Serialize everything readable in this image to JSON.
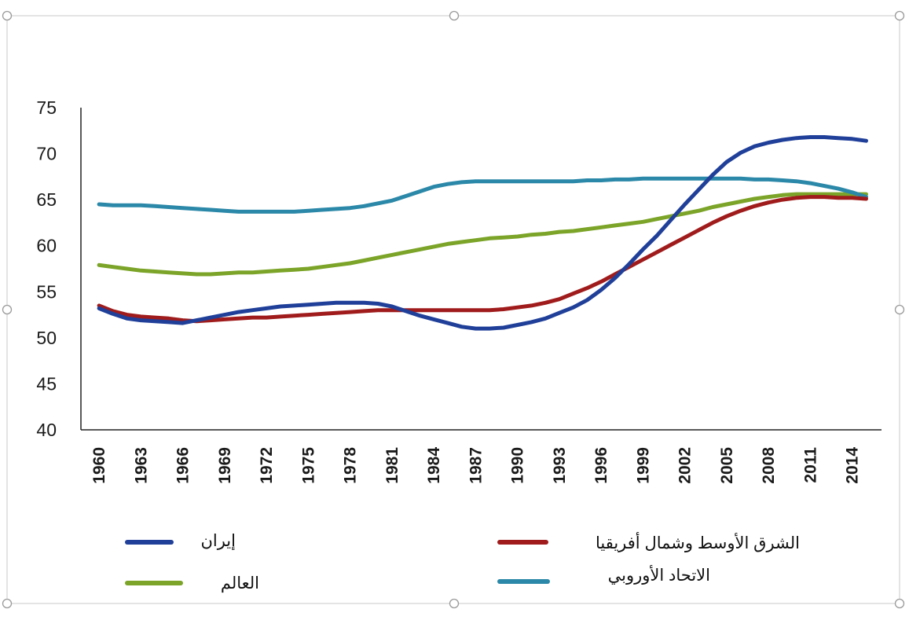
{
  "chart_data": {
    "type": "line",
    "title": "",
    "xlabel": "",
    "ylabel": "",
    "ylim": [
      40,
      75
    ],
    "yticks": [
      "40",
      "45",
      "50",
      "55",
      "60",
      "65",
      "70",
      "75"
    ],
    "xticks": [
      "1960",
      "1963",
      "1966",
      "1969",
      "1972",
      "1975",
      "1978",
      "1981",
      "1984",
      "1987",
      "1990",
      "1993",
      "1996",
      "1999",
      "2002",
      "2005",
      "2008",
      "2011",
      "2014"
    ],
    "x": [
      1960,
      1961,
      1962,
      1963,
      1964,
      1965,
      1966,
      1967,
      1968,
      1969,
      1970,
      1971,
      1972,
      1973,
      1974,
      1975,
      1976,
      1977,
      1978,
      1979,
      1980,
      1981,
      1982,
      1983,
      1984,
      1985,
      1986,
      1987,
      1988,
      1989,
      1990,
      1991,
      1992,
      1993,
      1994,
      1995,
      1996,
      1997,
      1998,
      1999,
      2000,
      2001,
      2002,
      2003,
      2004,
      2005,
      2006,
      2007,
      2008,
      2009,
      2010,
      2011,
      2012,
      2013,
      2014,
      2015
    ],
    "series": [
      {
        "name": "إيران",
        "color": "#1f3f99",
        "values": [
          53.2,
          52.6,
          52.1,
          51.9,
          51.8,
          51.7,
          51.6,
          51.9,
          52.2,
          52.5,
          52.8,
          53.0,
          53.2,
          53.4,
          53.5,
          53.6,
          53.7,
          53.8,
          53.8,
          53.8,
          53.7,
          53.4,
          52.9,
          52.4,
          52.0,
          51.6,
          51.2,
          51.0,
          51.0,
          51.1,
          51.4,
          51.7,
          52.1,
          52.7,
          53.3,
          54.1,
          55.2,
          56.5,
          58.0,
          59.6,
          61.1,
          62.8,
          64.5,
          66.1,
          67.7,
          69.1,
          70.1,
          70.8,
          71.2,
          71.5,
          71.7,
          71.8,
          71.8,
          71.7,
          71.6,
          71.4
        ]
      },
      {
        "name": "الشرق الأوسط وشمال أفريقيا",
        "color": "#a01c1c",
        "values": [
          53.5,
          52.9,
          52.5,
          52.3,
          52.2,
          52.1,
          51.9,
          51.8,
          51.9,
          52.0,
          52.1,
          52.2,
          52.2,
          52.3,
          52.4,
          52.5,
          52.6,
          52.7,
          52.8,
          52.9,
          53.0,
          53.0,
          53.0,
          53.0,
          53.0,
          53.0,
          53.0,
          53.0,
          53.0,
          53.1,
          53.3,
          53.5,
          53.8,
          54.2,
          54.8,
          55.4,
          56.1,
          56.9,
          57.7,
          58.5,
          59.3,
          60.1,
          60.9,
          61.7,
          62.5,
          63.2,
          63.8,
          64.3,
          64.7,
          65.0,
          65.2,
          65.3,
          65.3,
          65.2,
          65.2,
          65.1
        ]
      },
      {
        "name": "العالم",
        "color": "#7ba428",
        "values": [
          57.9,
          57.7,
          57.5,
          57.3,
          57.2,
          57.1,
          57.0,
          56.9,
          56.9,
          57.0,
          57.1,
          57.1,
          57.2,
          57.3,
          57.4,
          57.5,
          57.7,
          57.9,
          58.1,
          58.4,
          58.7,
          59.0,
          59.3,
          59.6,
          59.9,
          60.2,
          60.4,
          60.6,
          60.8,
          60.9,
          61.0,
          61.2,
          61.3,
          61.5,
          61.6,
          61.8,
          62.0,
          62.2,
          62.4,
          62.6,
          62.9,
          63.2,
          63.5,
          63.8,
          64.2,
          64.5,
          64.8,
          65.1,
          65.3,
          65.5,
          65.6,
          65.6,
          65.6,
          65.6,
          65.6,
          65.6
        ]
      },
      {
        "name": "الاتحاد الأوروبي",
        "color": "#2b88a8",
        "values": [
          64.5,
          64.4,
          64.4,
          64.4,
          64.3,
          64.2,
          64.1,
          64.0,
          63.9,
          63.8,
          63.7,
          63.7,
          63.7,
          63.7,
          63.7,
          63.8,
          63.9,
          64.0,
          64.1,
          64.3,
          64.6,
          64.9,
          65.4,
          65.9,
          66.4,
          66.7,
          66.9,
          67.0,
          67.0,
          67.0,
          67.0,
          67.0,
          67.0,
          67.0,
          67.0,
          67.1,
          67.1,
          67.2,
          67.2,
          67.3,
          67.3,
          67.3,
          67.3,
          67.3,
          67.3,
          67.3,
          67.3,
          67.2,
          67.2,
          67.1,
          67.0,
          66.8,
          66.5,
          66.2,
          65.8,
          65.3
        ]
      }
    ],
    "legend": {
      "position": "bottom",
      "items": [
        {
          "label": "إيران",
          "color": "#1f3f99"
        },
        {
          "label": "الشرق الأوسط وشمال أفريقيا",
          "color": "#a01c1c"
        },
        {
          "label": "العالم",
          "color": "#7ba428"
        },
        {
          "label": "الاتحاد الأوروبي",
          "color": "#2b88a8"
        }
      ]
    },
    "grid": false
  },
  "frame": {
    "border_color": "#c8c8c8",
    "handle_color": "#9a9a9a"
  }
}
